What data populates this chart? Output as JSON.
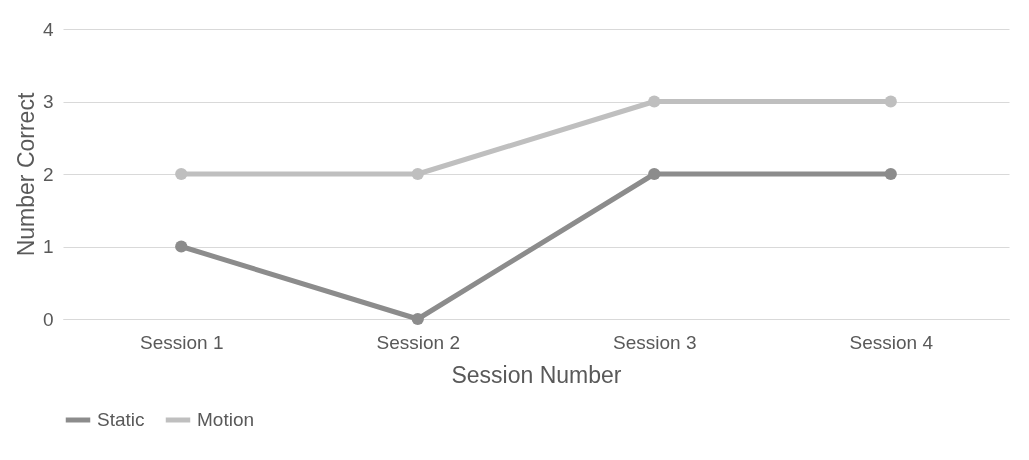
{
  "chart_data": {
    "type": "line",
    "xlabel": "Session Number",
    "ylabel": "Number Correct",
    "categories": [
      "Session 1",
      "Session 2",
      "Session 3",
      "Session 4"
    ],
    "series": [
      {
        "name": "Static",
        "color": "#8c8c8c",
        "values": [
          1,
          0,
          2,
          2
        ]
      },
      {
        "name": "Motion",
        "color": "#bfbfbf",
        "values": [
          2,
          2,
          3,
          3
        ]
      }
    ],
    "ylim": [
      0,
      4
    ],
    "yticks": [
      0,
      1,
      2,
      3,
      4
    ],
    "grid": "y",
    "legend": "bottom",
    "marker": "circle",
    "line_style": "solid"
  }
}
